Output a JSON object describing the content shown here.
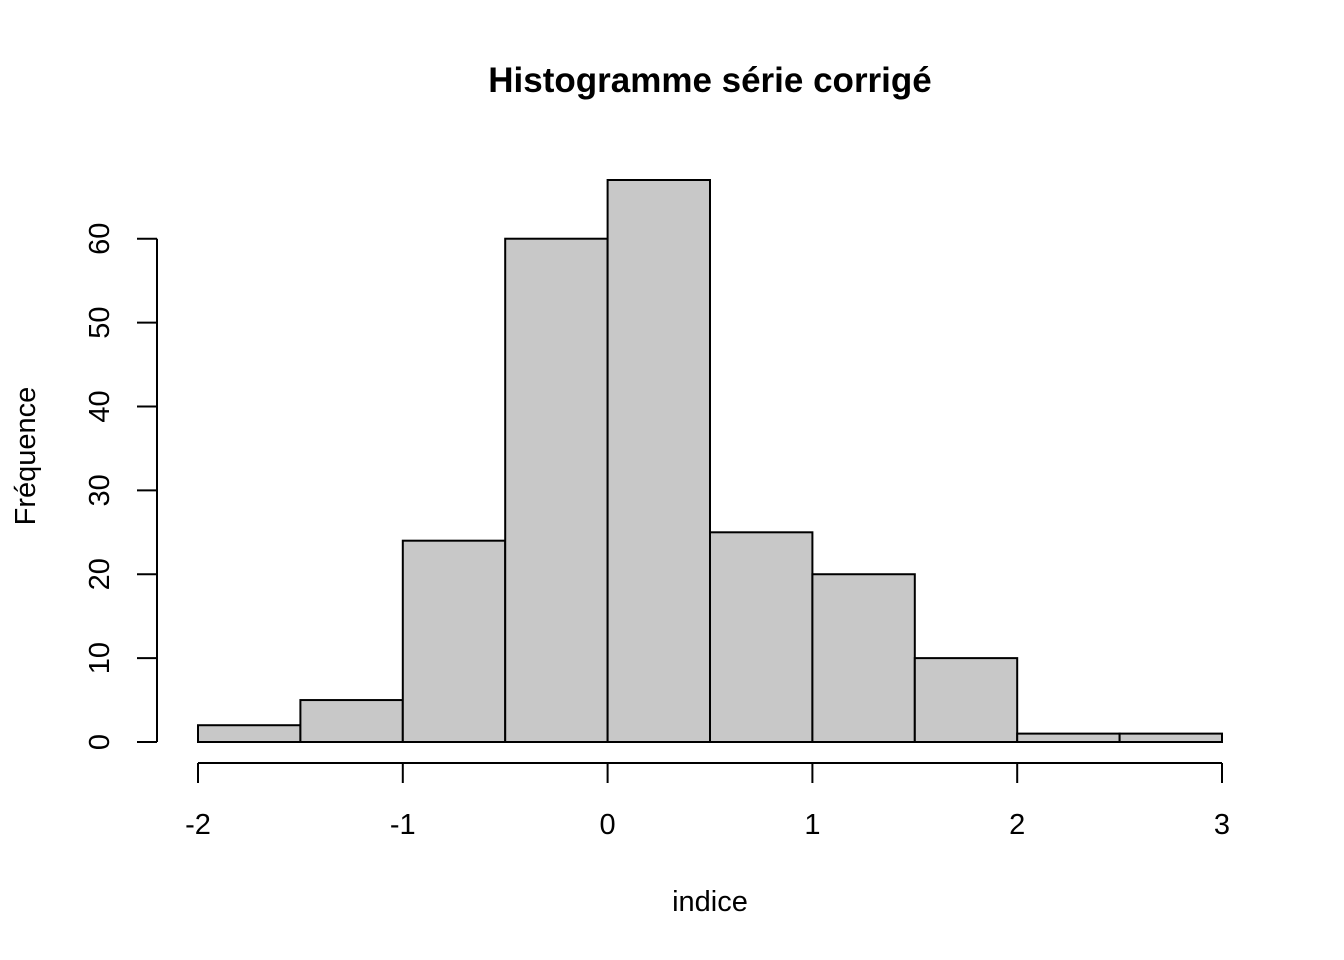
{
  "chart_data": {
    "type": "bar",
    "title": "Histogramme série corrigé",
    "xlabel": "indice",
    "ylabel": "Fréquence",
    "bins": [
      {
        "start": -2.0,
        "end": -1.5,
        "count": 2
      },
      {
        "start": -1.5,
        "end": -1.0,
        "count": 5
      },
      {
        "start": -1.0,
        "end": -0.5,
        "count": 24
      },
      {
        "start": -0.5,
        "end": 0.0,
        "count": 60
      },
      {
        "start": 0.0,
        "end": 0.5,
        "count": 67
      },
      {
        "start": 0.5,
        "end": 1.0,
        "count": 25
      },
      {
        "start": 1.0,
        "end": 1.5,
        "count": 20
      },
      {
        "start": 1.5,
        "end": 2.0,
        "count": 10
      },
      {
        "start": 2.0,
        "end": 2.5,
        "count": 1
      },
      {
        "start": 2.5,
        "end": 3.0,
        "count": 1
      }
    ],
    "x_ticks": [
      -2,
      -1,
      0,
      1,
      2,
      3
    ],
    "y_ticks": [
      0,
      10,
      20,
      30,
      40,
      50,
      60
    ],
    "xlim": [
      -2,
      3
    ],
    "ylim": [
      0,
      67
    ],
    "grid": false,
    "bar_color": "#c8c8c8",
    "edge_color": "#000000"
  }
}
